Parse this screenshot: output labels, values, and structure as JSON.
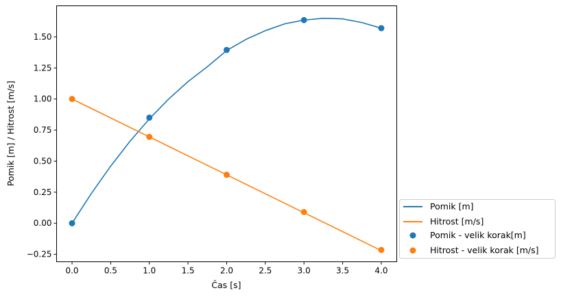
{
  "chart_data": {
    "type": "line",
    "xlabel": "Čas [s]",
    "ylabel": "Pomik [m] / Hitrost [m/s]",
    "xlim": [
      -0.2,
      4.2
    ],
    "ylim": [
      -0.31,
      1.75
    ],
    "x_ticks": [
      0.0,
      0.5,
      1.0,
      1.5,
      2.0,
      2.5,
      3.0,
      3.5,
      4.0
    ],
    "x_tick_labels": [
      "0.0",
      "0.5",
      "1.0",
      "1.5",
      "2.0",
      "2.5",
      "3.0",
      "3.5",
      "4.0"
    ],
    "y_ticks": [
      -0.25,
      0.0,
      0.25,
      0.5,
      0.75,
      1.0,
      1.25,
      1.5
    ],
    "y_tick_labels": [
      "−0.25",
      "0.00",
      "0.25",
      "0.50",
      "0.75",
      "1.00",
      "1.25",
      "1.50"
    ],
    "grid": false,
    "legend_position": "outside-lower-right",
    "colors": {
      "blue": "#1f77b4",
      "orange": "#ff7f0e"
    },
    "series": [
      {
        "name": "Pomik [m]",
        "kind": "line",
        "color": "#1f77b4",
        "x": [
          0.0,
          0.25,
          0.5,
          0.75,
          1.0,
          1.25,
          1.5,
          1.75,
          2.0,
          2.25,
          2.5,
          2.75,
          3.0,
          3.25,
          3.5,
          3.75,
          4.0
        ],
        "y": [
          0.0,
          0.24,
          0.46,
          0.66,
          0.84,
          1.0,
          1.14,
          1.26,
          1.39,
          1.48,
          1.55,
          1.605,
          1.635,
          1.65,
          1.645,
          1.615,
          1.57
        ]
      },
      {
        "name": "Hitrost [m/s]",
        "kind": "line",
        "color": "#ff7f0e",
        "x": [
          0.0,
          1.0,
          2.0,
          3.0,
          4.0
        ],
        "y": [
          1.0,
          0.695,
          0.39,
          0.085,
          -0.22
        ]
      },
      {
        "name": "Pomik - velik korak[m]",
        "kind": "scatter",
        "color": "#1f77b4",
        "x": [
          0.0,
          1.0,
          2.0,
          3.0,
          4.0
        ],
        "y": [
          0.0,
          0.85,
          1.395,
          1.635,
          1.57
        ]
      },
      {
        "name": "Hitrost - velik korak [m/s]",
        "kind": "scatter",
        "color": "#ff7f0e",
        "x": [
          0.0,
          1.0,
          2.0,
          3.0,
          4.0
        ],
        "y": [
          1.0,
          0.695,
          0.39,
          0.09,
          -0.215
        ]
      }
    ]
  }
}
